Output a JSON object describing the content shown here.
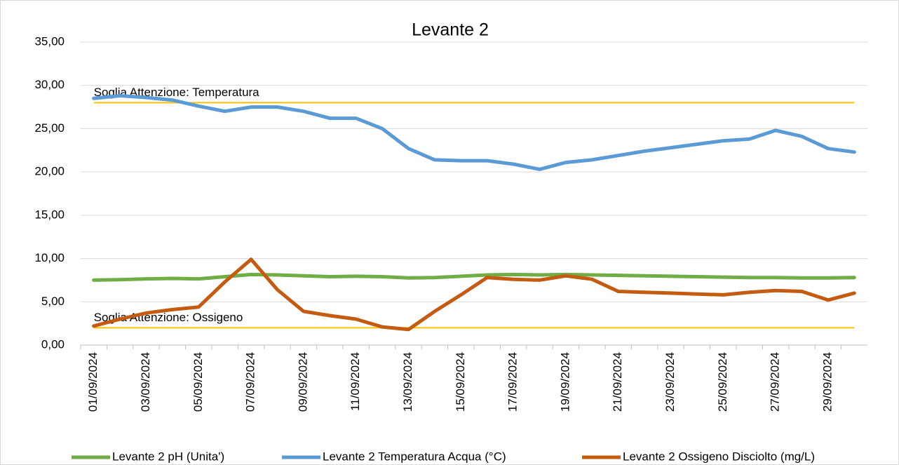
{
  "chart_data": {
    "type": "line",
    "title": "Levante 2",
    "categories": [
      "01/09/2024",
      null,
      "03/09/2024",
      null,
      "05/09/2024",
      null,
      "07/09/2024",
      null,
      "09/09/2024",
      null,
      "11/09/2024",
      null,
      "13/09/2024",
      null,
      "15/09/2024",
      null,
      "17/09/2024",
      null,
      "19/09/2024",
      null,
      "21/09/2024",
      null,
      "23/09/2024",
      null,
      "25/09/2024",
      null,
      "27/09/2024",
      null,
      "29/09/2024",
      null
    ],
    "series": [
      {
        "name": "Levante 2 pH (Unita')",
        "color": "#70ad47",
        "values": [
          7.5,
          7.55,
          7.65,
          7.7,
          7.65,
          7.9,
          8.15,
          8.1,
          8.0,
          7.9,
          7.95,
          7.9,
          7.75,
          7.8,
          7.95,
          8.1,
          8.15,
          8.1,
          8.15,
          8.1,
          8.05,
          8.0,
          7.95,
          7.9,
          7.85,
          7.8,
          7.8,
          7.75,
          7.75,
          7.8
        ]
      },
      {
        "name": "Levante 2 Temperatura Acqua (°C)",
        "color": "#5b9bd5",
        "values": [
          28.5,
          28.8,
          28.6,
          28.3,
          27.6,
          27.0,
          27.5,
          27.5,
          27.0,
          26.2,
          26.2,
          25.0,
          22.7,
          21.4,
          21.3,
          21.3,
          20.9,
          20.3,
          21.1,
          21.4,
          21.9,
          22.4,
          22.8,
          23.2,
          23.6,
          23.8,
          24.8,
          24.1,
          22.7,
          22.3
        ]
      },
      {
        "name": "Levante 2 Ossigeno Disciolto (mg/L)",
        "color": "#c55a11",
        "values": [
          2.2,
          3.0,
          3.7,
          4.1,
          4.4,
          7.3,
          9.9,
          6.4,
          3.9,
          3.4,
          3.0,
          2.1,
          1.8,
          3.9,
          5.8,
          7.8,
          7.6,
          7.5,
          8.0,
          7.6,
          6.2,
          6.1,
          6.0,
          5.9,
          5.8,
          6.1,
          6.3,
          6.2,
          5.2,
          6.0
        ]
      }
    ],
    "thresholds": [
      {
        "label": "Soglia Attenzione: Temperatura",
        "value": 28,
        "color": "#ffc000"
      },
      {
        "label": "Soglia Attenzione: Ossigeno",
        "value": 2,
        "color": "#ffc000"
      }
    ],
    "ylim": [
      0,
      35
    ],
    "yticks": [
      {
        "value": 0,
        "label": "0,00"
      },
      {
        "value": 5,
        "label": "5,00"
      },
      {
        "value": 10,
        "label": "10,00"
      },
      {
        "value": 15,
        "label": "15,00"
      },
      {
        "value": 20,
        "label": "20,00"
      },
      {
        "value": 25,
        "label": "25,00"
      },
      {
        "value": 30,
        "label": "30,00"
      },
      {
        "value": 35,
        "label": "35,00"
      }
    ],
    "grid": true,
    "legend": "bottom"
  }
}
